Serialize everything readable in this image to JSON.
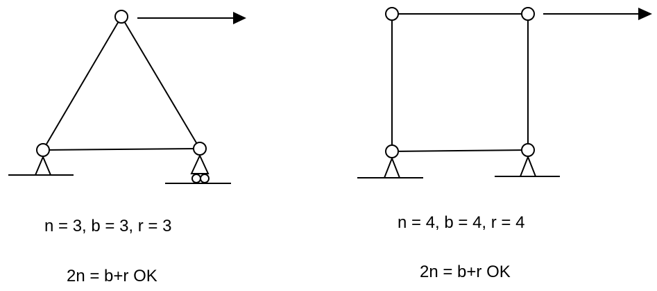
{
  "left_truss": {
    "equation_counts": "n = 3, b = 3, r = 3",
    "equation_check": "2n = b+r OK"
  },
  "right_frame": {
    "equation_counts": "n = 4, b = 4, r = 4",
    "equation_check": "2n = b+r OK"
  },
  "stroke_color": "#000000"
}
